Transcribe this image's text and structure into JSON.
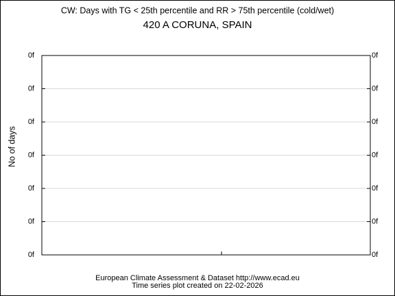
{
  "chart_data": {
    "type": "line",
    "title": "CW: Days with TG < 25th percentile and RR > 75th percentile (cold/wet)",
    "subtitle": "420 A CORUNA, SPAIN",
    "ylabel": "No of days",
    "footer": [
      "European Climate Assessment & Dataset  http://www.ecad.eu",
      "Time series plot created on 22-02-2026"
    ],
    "series": [],
    "ylim": [
      0,
      6
    ],
    "yticks": [
      {
        "value": 0,
        "label": "0f"
      },
      {
        "value": 1,
        "label": "0f"
      },
      {
        "value": 2,
        "label": "0f"
      },
      {
        "value": 3,
        "label": "0f"
      },
      {
        "value": 4,
        "label": "0f"
      },
      {
        "value": 5,
        "label": "0f"
      },
      {
        "value": 6,
        "label": "0f"
      }
    ],
    "grid": true
  }
}
